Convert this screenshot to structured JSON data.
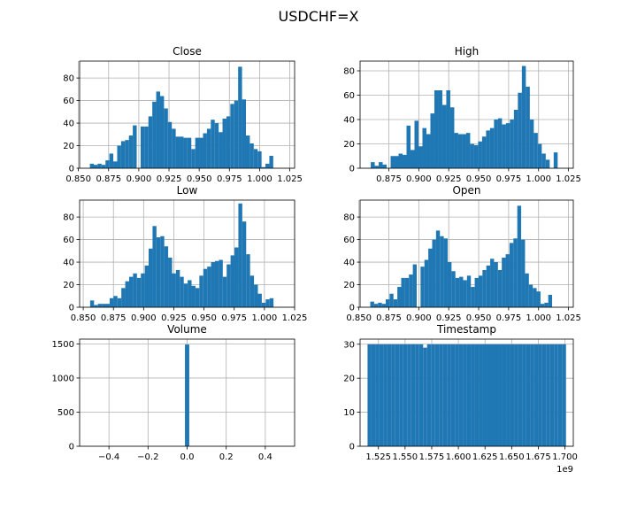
{
  "suptitle": "USDCHF=X",
  "colors": {
    "bar": "#1f77b4",
    "grid": "#b0b0b0"
  },
  "chart_data": [
    {
      "type": "bar",
      "title": "Close",
      "grid": true,
      "xlim": [
        0.851,
        1.029
      ],
      "ylim": [
        0,
        95
      ],
      "xticks": [
        0.85,
        0.875,
        0.9,
        0.925,
        0.95,
        0.975,
        1.0,
        1.025
      ],
      "xtick_labels": [
        "0.850",
        "0.875",
        "0.900",
        "0.925",
        "0.950",
        "0.975",
        "1.000",
        "1.025"
      ],
      "yticks": [
        0,
        20,
        40,
        60,
        80
      ],
      "bin_start": 0.8595,
      "bin_width": 0.00323,
      "values": [
        4,
        3,
        4,
        3,
        7,
        13,
        6,
        20,
        24,
        25,
        29,
        38,
        0,
        37,
        37,
        46,
        59,
        68,
        64,
        53,
        41,
        35,
        28,
        28,
        27,
        27,
        17,
        27,
        27,
        31,
        35,
        43,
        40,
        32,
        44,
        46,
        57,
        60,
        90,
        61,
        29,
        22,
        17,
        15,
        1,
        4,
        11
      ]
    },
    {
      "type": "bar",
      "title": "High",
      "grid": true,
      "xlim": [
        0.851,
        1.029
      ],
      "ylim": [
        0,
        88
      ],
      "xticks": [
        0.875,
        0.9,
        0.925,
        0.95,
        0.975,
        1.0,
        1.025
      ],
      "xtick_labels": [
        "0.875",
        "0.900",
        "0.925",
        "0.950",
        "0.975",
        "1.000",
        "1.025"
      ],
      "yticks": [
        0,
        20,
        40,
        60,
        80
      ],
      "bin_start": 0.8599,
      "bin_width": 0.00332,
      "values": [
        5,
        2,
        5,
        3,
        0,
        10,
        10,
        12,
        11,
        35,
        15,
        39,
        18,
        33,
        28,
        45,
        64,
        64,
        52,
        64,
        50,
        29,
        28,
        28,
        29,
        20,
        19,
        22,
        26,
        31,
        33,
        40,
        41,
        36,
        37,
        40,
        48,
        62,
        84,
        67,
        40,
        29,
        20,
        12,
        7,
        0,
        13
      ]
    },
    {
      "type": "bar",
      "title": "Low",
      "grid": true,
      "xlim": [
        0.847,
        1.025
      ],
      "ylim": [
        0,
        95
      ],
      "xticks": [
        0.85,
        0.875,
        0.9,
        0.925,
        0.95,
        0.975,
        1.0,
        1.025
      ],
      "xtick_labels": [
        "0.850",
        "0.875",
        "0.900",
        "0.925",
        "0.950",
        "0.975",
        "1.000",
        "1.025"
      ],
      "yticks": [
        0,
        20,
        40,
        60,
        80
      ],
      "bin_start": 0.8557,
      "bin_width": 0.00323,
      "values": [
        6,
        2,
        3,
        3,
        3,
        8,
        10,
        8,
        17,
        23,
        27,
        30,
        26,
        30,
        37,
        52,
        72,
        62,
        63,
        54,
        44,
        30,
        33,
        27,
        21,
        24,
        19,
        17,
        28,
        34,
        36,
        40,
        41,
        42,
        27,
        38,
        46,
        53,
        92,
        76,
        47,
        28,
        20,
        12,
        4,
        7,
        8
      ]
    },
    {
      "type": "bar",
      "title": "Open",
      "grid": true,
      "xlim": [
        0.851,
        1.029
      ],
      "ylim": [
        0,
        95
      ],
      "xticks": [
        0.85,
        0.875,
        0.9,
        0.925,
        0.95,
        0.975,
        1.0,
        1.025
      ],
      "xtick_labels": [
        "0.850",
        "0.875",
        "0.900",
        "0.925",
        "0.950",
        "0.975",
        "1.000",
        "1.025"
      ],
      "yticks": [
        0,
        20,
        40,
        60,
        80
      ],
      "bin_start": 0.8595,
      "bin_width": 0.00323,
      "values": [
        5,
        3,
        4,
        3,
        7,
        12,
        7,
        18,
        26,
        26,
        29,
        38,
        0,
        36,
        42,
        52,
        60,
        68,
        63,
        61,
        40,
        32,
        26,
        27,
        24,
        28,
        18,
        26,
        28,
        33,
        37,
        43,
        40,
        33,
        44,
        47,
        57,
        61,
        90,
        60,
        30,
        20,
        17,
        14,
        3,
        4,
        11
      ]
    },
    {
      "type": "bar",
      "title": "Volume",
      "grid": true,
      "xlim": [
        -0.55,
        0.55
      ],
      "ylim": [
        0,
        1570
      ],
      "xticks": [
        -0.4,
        -0.2,
        0.0,
        0.2,
        0.4
      ],
      "xtick_labels": [
        "−0.4",
        "−0.2",
        "0.0",
        "0.2",
        "0.4"
      ],
      "yticks": [
        0,
        500,
        1000,
        1500
      ],
      "bin_start": -0.011,
      "bin_width": 0.022,
      "values": [
        1490
      ]
    },
    {
      "type": "bar",
      "title": "Timestamp",
      "grid": true,
      "xlim": [
        1.5078,
        1.7078
      ],
      "ylim": [
        0,
        31.5
      ],
      "xticks": [
        1.525,
        1.55,
        1.575,
        1.6,
        1.625,
        1.65,
        1.675,
        1.7
      ],
      "xtick_labels": [
        "1.525",
        "1.550",
        "1.575",
        "1.600",
        "1.625",
        "1.650",
        "1.675",
        "1.700"
      ],
      "yticks": [
        0,
        10,
        20,
        30
      ],
      "x_offset_label": "1e9",
      "bin_start": 1.5148,
      "bin_width": 0.003723,
      "values": [
        30,
        30,
        30,
        30,
        30,
        30,
        30,
        30,
        30,
        30,
        30,
        30,
        30,
        30,
        29,
        30,
        30,
        30,
        30,
        30,
        30,
        30,
        30,
        30,
        30,
        30,
        30,
        30,
        30,
        30,
        30,
        30,
        30,
        30,
        30,
        30,
        30,
        30,
        30,
        30,
        30,
        30,
        30,
        30,
        30,
        30,
        30,
        30,
        30,
        30
      ]
    }
  ]
}
